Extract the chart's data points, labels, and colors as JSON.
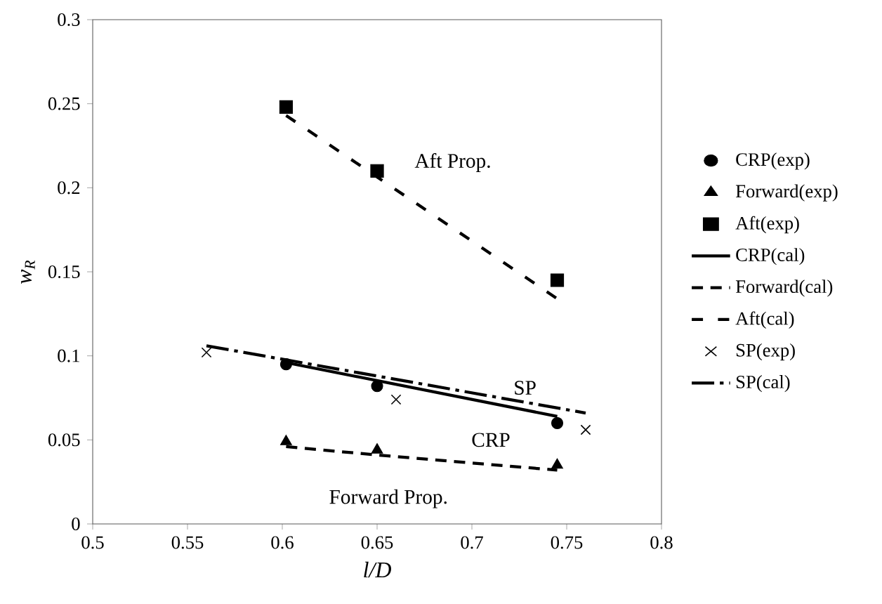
{
  "chart_data": {
    "type": "scatter",
    "xlabel": "l/D",
    "ylabel": "w$_{R}$",
    "xlim": [
      0.5,
      0.8
    ],
    "xticks": [
      0.5,
      0.55,
      0.6,
      0.65,
      0.7,
      0.75,
      0.8
    ],
    "ylim": [
      0,
      0.3
    ],
    "yticks": [
      0,
      0.05,
      0.1,
      0.15,
      0.2,
      0.25,
      0.3
    ],
    "legend": "right",
    "grid": false,
    "series": [
      {
        "name": "CRP(exp)",
        "marker": "circle",
        "color": "#000000",
        "x": [
          0.602,
          0.65,
          0.745
        ],
        "values": [
          0.095,
          0.082,
          0.06
        ]
      },
      {
        "name": "Forward(exp)",
        "marker": "triangle",
        "color": "#000000",
        "x": [
          0.602,
          0.65,
          0.745
        ],
        "values": [
          0.049,
          0.044,
          0.035
        ]
      },
      {
        "name": "Aft(exp)",
        "marker": "square",
        "color": "#000000",
        "x": [
          0.602,
          0.65,
          0.745
        ],
        "values": [
          0.248,
          0.21,
          0.145
        ]
      },
      {
        "name": "CRP(cal)",
        "type": "line",
        "line_style": "solid",
        "color": "#000000",
        "x": [
          0.602,
          0.745
        ],
        "values": [
          0.096,
          0.064
        ]
      },
      {
        "name": "Forward(cal)",
        "type": "line",
        "line_style": "dashed",
        "color": "#000000",
        "x": [
          0.602,
          0.65,
          0.745
        ],
        "values": [
          0.046,
          0.041,
          0.032
        ]
      },
      {
        "name": "Aft(cal)",
        "type": "line",
        "line_style": "dashed",
        "color": "#000000",
        "x": [
          0.602,
          0.745
        ],
        "values": [
          0.243,
          0.134
        ]
      },
      {
        "name": "SP(exp)",
        "marker": "cross",
        "color": "#000000",
        "x": [
          0.56,
          0.66,
          0.76
        ],
        "values": [
          0.102,
          0.074,
          0.056
        ]
      },
      {
        "name": "SP(cal)",
        "type": "line",
        "line_style": "dashed",
        "color": "#000000",
        "x": [
          0.56,
          0.76
        ],
        "values": [
          0.106,
          0.066
        ]
      }
    ],
    "annotations": [
      "Aft Prop.",
      "SP",
      "CRP",
      "Forward Prop."
    ]
  }
}
